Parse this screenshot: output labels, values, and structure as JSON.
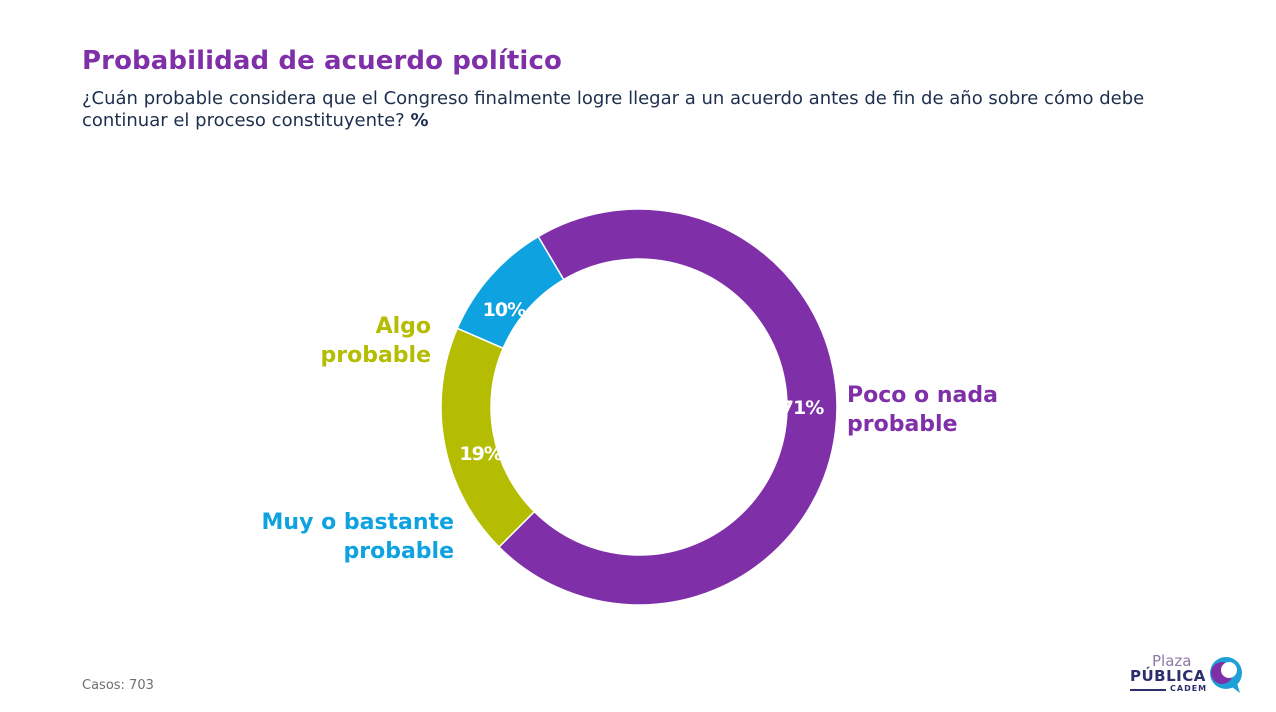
{
  "header": {
    "title": "Probabilidad de acuerdo político",
    "subtitle": "¿Cuán probable considera que el Congreso finalmente logre llegar a un acuerdo antes de fin de año sobre cómo debe continuar el proceso constituyente?",
    "subtitle_unit": "%"
  },
  "footer": {
    "cases": "Casos: 703"
  },
  "logo": {
    "plaza": "Plaza",
    "publica": "PÚBLICA",
    "cadem": "CADEM"
  },
  "colors": {
    "title": "#7f2fa8",
    "poco": "#7f2fa8",
    "algo": "#b5bd02",
    "muy": "#0ea2e0"
  },
  "chart_data": {
    "type": "pie",
    "donut": true,
    "categories": [
      "Poco o nada probable",
      "Algo probable",
      "Muy o bastante probable"
    ],
    "values": [
      71,
      19,
      10
    ],
    "value_labels": [
      "71%",
      "19%",
      "10%"
    ],
    "colors": [
      "#7f2fa8",
      "#b5bd02",
      "#0ea2e0"
    ]
  }
}
